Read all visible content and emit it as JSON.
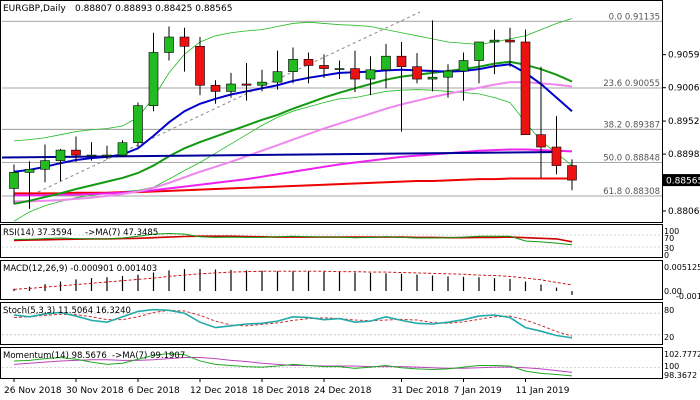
{
  "header": {
    "symbol": "EURGBP,Daily",
    "ohlc": "0.88807 0.88893 0.88425 0.88565"
  },
  "price_axis": {
    "labels": [
      "0.90595",
      "0.90060",
      "0.89520",
      "0.88985",
      "0.88565",
      "0.88065"
    ],
    "current_price": "0.88565"
  },
  "fib_levels": [
    {
      "label": "0.0 0.91135",
      "value": 0.91135
    },
    {
      "label": "23.6 0.90055",
      "value": 0.90055
    },
    {
      "label": "38.2 0.89387",
      "value": 0.89387
    },
    {
      "label": "50.0 0.88848",
      "value": 0.88848
    },
    {
      "label": "61.8 0.88308",
      "value": 0.88308
    }
  ],
  "rsi_panel": {
    "title": "RSI(14) 37.3594",
    "ma_title": "->MA(7) 47.3485",
    "levels": [
      "70",
      "30"
    ],
    "axis_labels": [
      "100",
      "0"
    ]
  },
  "macd_panel": {
    "title": "MACD(12,26,9) -0.000901 0.001403",
    "axis_labels": [
      "0.005125",
      "0.00",
      "-0.001188"
    ]
  },
  "stoch_panel": {
    "title": "Stoch(5,3,3) 11.5064 16.3240",
    "axis_labels": [
      "80",
      "20"
    ]
  },
  "momentum_panel": {
    "title": "Momentum(14) 98.5676",
    "ma_title": "->MA(7) 99.1907",
    "axis_labels": [
      "102.7772",
      "100",
      "98.3672"
    ]
  },
  "x_axis_labels": [
    "26 Nov 2018",
    "30 Nov 2018",
    "6 Dec 2018",
    "12 Dec 2018",
    "18 Dec 2018",
    "24 Dec 2018",
    "31 Dec 2018",
    "7 Jan 2019",
    "11 Jan 2019"
  ],
  "colors": {
    "bull": "#22bb22",
    "bear": "#ee1111",
    "blue_ma": "#0000cc",
    "magenta_ma": "#ee22ee",
    "red_ma": "#ee0000",
    "green_ma": "#119911",
    "pink_ma": "#ee88ee",
    "bollinger": "#22bb22",
    "rsi_line": "#119911",
    "rsi_ma": "#cc0000",
    "stoch_k": "#22aaaa",
    "stoch_d": "#cc3333",
    "momentum": "#22aa22",
    "momentum_ma": "#bb44bb"
  },
  "chart_data": {
    "type": "candlestick",
    "title": "EURGBP,Daily",
    "x": [
      "26 Nov 2018",
      "27 Nov 2018",
      "28 Nov 2018",
      "29 Nov 2018",
      "30 Nov 2018",
      "3 Dec 2018",
      "4 Dec 2018",
      "5 Dec 2018",
      "6 Dec 2018",
      "7 Dec 2018",
      "10 Dec 2018",
      "11 Dec 2018",
      "12 Dec 2018",
      "13 Dec 2018",
      "14 Dec 2018",
      "17 Dec 2018",
      "18 Dec 2018",
      "19 Dec 2018",
      "20 Dec 2018",
      "21 Dec 2018",
      "24 Dec 2018",
      "25 Dec 2018",
      "26 Dec 2018",
      "27 Dec 2018",
      "28 Dec 2018",
      "31 Dec 2018",
      "1 Jan 2019",
      "2 Jan 2019",
      "3 Jan 2019",
      "4 Jan 2019",
      "7 Jan 2019",
      "8 Jan 2019",
      "9 Jan 2019",
      "10 Jan 2019",
      "11 Jan 2019",
      "14 Jan 2019",
      "15 Jan 2019"
    ],
    "open": [
      0.8843,
      0.8869,
      0.8874,
      0.8888,
      0.8905,
      0.8897,
      0.8897,
      0.8897,
      0.8917,
      0.8977,
      0.9063,
      0.9088,
      0.9073,
      0.901,
      0.9,
      0.9012,
      0.901,
      0.9015,
      0.9032,
      0.9052,
      0.9042,
      0.9037,
      0.9037,
      0.902,
      0.9035,
      0.9057,
      0.904,
      0.902,
      0.9023,
      0.9033,
      0.905,
      0.908,
      0.9083,
      0.908,
      0.893,
      0.891,
      0.888
    ],
    "high": [
      0.8882,
      0.8887,
      0.8914,
      0.8907,
      0.8927,
      0.8918,
      0.8912,
      0.8921,
      0.8982,
      0.9095,
      0.9105,
      0.9103,
      0.9088,
      0.9018,
      0.903,
      0.9046,
      0.9035,
      0.9066,
      0.9071,
      0.9063,
      0.906,
      0.905,
      0.9066,
      0.9057,
      0.9077,
      0.908,
      0.9062,
      0.9115,
      0.9044,
      0.9063,
      0.908,
      0.91,
      0.9103,
      0.91,
      0.904,
      0.896,
      0.889
    ],
    "low": [
      0.8818,
      0.881,
      0.8853,
      0.8855,
      0.8886,
      0.8888,
      0.889,
      0.8894,
      0.891,
      0.8968,
      0.905,
      0.9032,
      0.8994,
      0.898,
      0.899,
      0.8985,
      0.9,
      0.9003,
      0.9013,
      0.9013,
      0.9022,
      0.902,
      0.8999,
      0.8994,
      0.9005,
      0.8935,
      0.9013,
      0.9,
      0.899,
      0.8985,
      0.9013,
      0.9028,
      0.904,
      0.893,
      0.886,
      0.8866,
      0.884
    ],
    "close": [
      0.8869,
      0.8874,
      0.8888,
      0.8905,
      0.8897,
      0.8897,
      0.8897,
      0.8917,
      0.8977,
      0.9063,
      0.9088,
      0.9073,
      0.901,
      0.9,
      0.9012,
      0.901,
      0.9015,
      0.9032,
      0.9052,
      0.9042,
      0.9037,
      0.9037,
      0.902,
      0.9035,
      0.9057,
      0.904,
      0.902,
      0.9023,
      0.9033,
      0.905,
      0.908,
      0.9083,
      0.908,
      0.893,
      0.891,
      0.888,
      0.88565
    ],
    "ylim": [
      0.88,
      0.9135
    ],
    "overlays": {
      "ma_blue": [
        0.887,
        0.8873,
        0.8878,
        0.8884,
        0.8889,
        0.8892,
        0.8894,
        0.8898,
        0.8908,
        0.8928,
        0.895,
        0.8968,
        0.898,
        0.8988,
        0.8995,
        0.9,
        0.9005,
        0.901,
        0.9017,
        0.9022,
        0.9026,
        0.903,
        0.9031,
        0.9032,
        0.9034,
        0.9035,
        0.9034,
        0.9033,
        0.9032,
        0.9033,
        0.9036,
        0.9041,
        0.9044,
        0.903,
        0.9012,
        0.899,
        0.8968
      ],
      "ma_green": [
        0.8818,
        0.8823,
        0.8829,
        0.8835,
        0.8842,
        0.8848,
        0.8854,
        0.886,
        0.8868,
        0.888,
        0.8895,
        0.8908,
        0.8918,
        0.8927,
        0.8936,
        0.8945,
        0.8954,
        0.8962,
        0.8972,
        0.8981,
        0.899,
        0.8998,
        0.9005,
        0.9012,
        0.9019,
        0.9024,
        0.9027,
        0.903,
        0.9033,
        0.9036,
        0.904,
        0.9045,
        0.9048,
        0.9043,
        0.9036,
        0.9027,
        0.9016
      ],
      "ma_pink": [
        0.8822,
        0.8822,
        0.8823,
        0.8824,
        0.8826,
        0.8828,
        0.8831,
        0.8834,
        0.8838,
        0.8844,
        0.8852,
        0.8861,
        0.887,
        0.8878,
        0.8886,
        0.8895,
        0.8904,
        0.8913,
        0.8922,
        0.8931,
        0.894,
        0.8948,
        0.8956,
        0.8964,
        0.8972,
        0.8979,
        0.8985,
        0.8991,
        0.8996,
        0.9001,
        0.9006,
        0.9011,
        0.9015,
        0.9015,
        0.9013,
        0.9011,
        0.9008
      ],
      "ma_magenta": [
        0.8832,
        0.8832,
        0.8832,
        0.8833,
        0.8833,
        0.8834,
        0.8835,
        0.8836,
        0.8838,
        0.884,
        0.8843,
        0.8846,
        0.8849,
        0.8852,
        0.8855,
        0.8858,
        0.8862,
        0.8866,
        0.887,
        0.8874,
        0.8878,
        0.8882,
        0.8885,
        0.8888,
        0.8891,
        0.8894,
        0.8896,
        0.8898,
        0.89,
        0.8902,
        0.8904,
        0.8905,
        0.8906,
        0.8906,
        0.8905,
        0.8904,
        0.8903
      ],
      "ma_red": [
        0.8835,
        0.8835,
        0.8835,
        0.8835,
        0.8836,
        0.8836,
        0.8836,
        0.8837,
        0.8837,
        0.8838,
        0.8839,
        0.884,
        0.8841,
        0.8842,
        0.8843,
        0.8844,
        0.8845,
        0.8846,
        0.8847,
        0.8848,
        0.8849,
        0.885,
        0.8851,
        0.8852,
        0.8853,
        0.8854,
        0.8855,
        0.8855,
        0.8856,
        0.8857,
        0.8858,
        0.8858,
        0.8859,
        0.8859,
        0.8859,
        0.8859,
        0.8859
      ],
      "bb_upper": [
        0.892,
        0.8922,
        0.8925,
        0.893,
        0.8935,
        0.8938,
        0.894,
        0.8944,
        0.8958,
        0.899,
        0.903,
        0.906,
        0.908,
        0.909,
        0.9095,
        0.9098,
        0.91,
        0.9105,
        0.911,
        0.9112,
        0.911,
        0.9108,
        0.9107,
        0.9105,
        0.91,
        0.9095,
        0.909,
        0.9085,
        0.908,
        0.9078,
        0.9076,
        0.908,
        0.9085,
        0.909,
        0.91,
        0.911,
        0.9118
      ],
      "bb_lower": [
        0.879,
        0.8805,
        0.8815,
        0.8822,
        0.8828,
        0.8832,
        0.8835,
        0.8838,
        0.884,
        0.8845,
        0.8858,
        0.8872,
        0.8885,
        0.89,
        0.8915,
        0.893,
        0.8945,
        0.8958,
        0.8968,
        0.8975,
        0.8982,
        0.8988,
        0.899,
        0.8995,
        0.9,
        0.9002,
        0.9003,
        0.9002,
        0.9,
        0.8998,
        0.8996,
        0.899,
        0.8982,
        0.895,
        0.892,
        0.89,
        0.888
      ]
    },
    "rsi": [
      55,
      56,
      58,
      60,
      58,
      57,
      57,
      60,
      66,
      73,
      75,
      73,
      64,
      62,
      63,
      62,
      62,
      64,
      66,
      64,
      63,
      63,
      61,
      62,
      64,
      62,
      60,
      60,
      61,
      63,
      66,
      66,
      66,
      50,
      47,
      43,
      37.3594
    ],
    "rsi_ma": [
      52,
      53,
      54,
      55,
      56,
      57,
      57,
      58,
      59,
      61,
      63,
      65,
      66,
      66,
      66,
      65,
      64,
      63,
      63,
      63,
      63,
      63,
      63,
      63,
      63,
      63,
      62,
      62,
      61,
      61,
      62,
      62,
      63,
      61,
      59,
      57,
      47.3485
    ],
    "macd_hist": [
      0.0005,
      0.001,
      0.0016,
      0.0022,
      0.0027,
      0.003,
      0.0032,
      0.0035,
      0.0038,
      0.0043,
      0.0048,
      0.0051,
      0.00512,
      0.005,
      0.0049,
      0.0048,
      0.0047,
      0.0046,
      0.0046,
      0.0046,
      0.0045,
      0.0044,
      0.0043,
      0.0042,
      0.0041,
      0.004,
      0.0038,
      0.0036,
      0.0034,
      0.0033,
      0.0032,
      0.003,
      0.0028,
      0.0022,
      0.0015,
      0.0008,
      -0.000901
    ],
    "macd_signal": [
      0.0004,
      0.0006,
      0.0009,
      0.0012,
      0.0015,
      0.0018,
      0.0021,
      0.0024,
      0.0027,
      0.003,
      0.0034,
      0.0037,
      0.004,
      0.0042,
      0.0044,
      0.0045,
      0.0046,
      0.0046,
      0.0046,
      0.0046,
      0.0046,
      0.0045,
      0.0045,
      0.0044,
      0.0044,
      0.0043,
      0.0042,
      0.0041,
      0.004,
      0.0039,
      0.0037,
      0.0036,
      0.0034,
      0.003,
      0.0026,
      0.002,
      0.001403
    ],
    "stoch_k": [
      75,
      70,
      78,
      82,
      72,
      60,
      55,
      70,
      85,
      90,
      88,
      80,
      55,
      40,
      45,
      50,
      52,
      58,
      70,
      68,
      62,
      65,
      55,
      58,
      70,
      60,
      52,
      50,
      55,
      62,
      72,
      75,
      68,
      40,
      30,
      18,
      11.5064
    ],
    "stoch_d": [
      68,
      70,
      74,
      77,
      76,
      70,
      62,
      62,
      70,
      82,
      88,
      86,
      74,
      58,
      47,
      45,
      49,
      53,
      60,
      65,
      67,
      65,
      61,
      59,
      61,
      63,
      61,
      54,
      52,
      56,
      63,
      70,
      72,
      61,
      46,
      29,
      16.324
    ],
    "momentum": [
      101.2,
      101.3,
      101.6,
      101.8,
      101.5,
      101.0,
      100.6,
      100.8,
      101.5,
      102.2,
      102.5,
      102.3,
      101.2,
      100.6,
      100.4,
      100.2,
      100.1,
      100.3,
      100.6,
      100.4,
      100.2,
      100.2,
      99.9,
      100.1,
      100.4,
      100.0,
      99.8,
      99.7,
      99.8,
      100.1,
      100.4,
      100.4,
      100.3,
      99.4,
      99.0,
      98.8,
      98.5676
    ],
    "momentum_ma": [
      100.6,
      100.8,
      101.0,
      101.2,
      101.3,
      101.4,
      101.4,
      101.3,
      101.3,
      101.4,
      101.6,
      101.8,
      101.8,
      101.6,
      101.3,
      101.1,
      100.8,
      100.6,
      100.4,
      100.4,
      100.3,
      100.3,
      100.3,
      100.2,
      100.2,
      100.2,
      100.1,
      100.0,
      99.9,
      99.9,
      100.0,
      100.1,
      100.1,
      100.0,
      99.8,
      99.5,
      99.1907
    ],
    "xlabel": "",
    "ylabel": ""
  }
}
